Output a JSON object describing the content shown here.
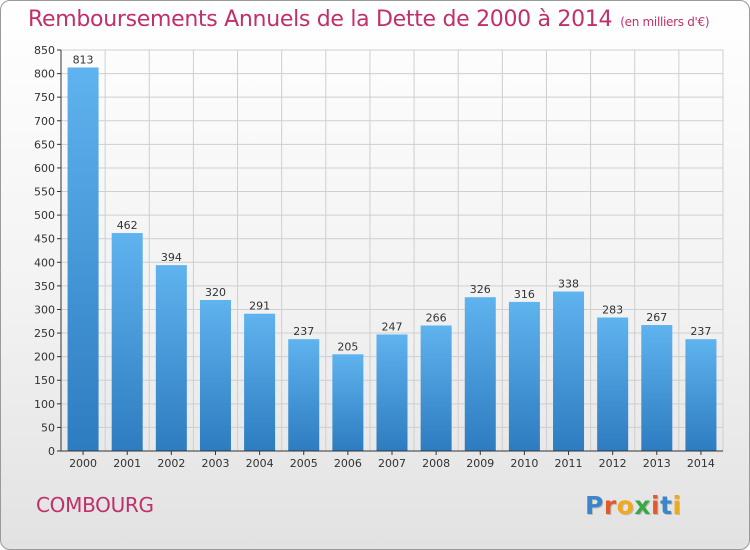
{
  "header": {
    "title": "Remboursements Annuels de la Dette de 2000 à 2014",
    "subtitle": "(en milliers d'€)"
  },
  "commune": "COMBOURG",
  "logo": {
    "text": "Proxiti",
    "letters": [
      {
        "ch": "P",
        "color": "#3a86c8"
      },
      {
        "ch": "r",
        "color": "#e25a2b"
      },
      {
        "ch": "o",
        "color": "#f0a81c"
      },
      {
        "ch": "x",
        "color": "#3aa845"
      },
      {
        "ch": "i",
        "color": "#e25a2b"
      },
      {
        "ch": "t",
        "color": "#3a86c8"
      },
      {
        "ch": "i",
        "color": "#f0a81c"
      }
    ]
  },
  "colors": {
    "title": "#c0306a",
    "bar_top": "#5fb3ee",
    "bar_bottom": "#2d7cc0",
    "grid": "#cfcfcf",
    "axis": "#333333"
  },
  "chart_data": {
    "type": "bar",
    "categories": [
      "2000",
      "2001",
      "2002",
      "2003",
      "2004",
      "2005",
      "2006",
      "2007",
      "2008",
      "2009",
      "2010",
      "2011",
      "2012",
      "2013",
      "2014"
    ],
    "values": [
      813,
      462,
      394,
      320,
      291,
      237,
      205,
      247,
      266,
      326,
      316,
      338,
      283,
      267,
      237
    ],
    "ylim": [
      0,
      850
    ],
    "yticks": [
      0,
      50,
      100,
      150,
      200,
      250,
      300,
      350,
      400,
      450,
      500,
      550,
      600,
      650,
      700,
      750,
      800,
      850
    ],
    "grid": true,
    "data_labels": true
  }
}
